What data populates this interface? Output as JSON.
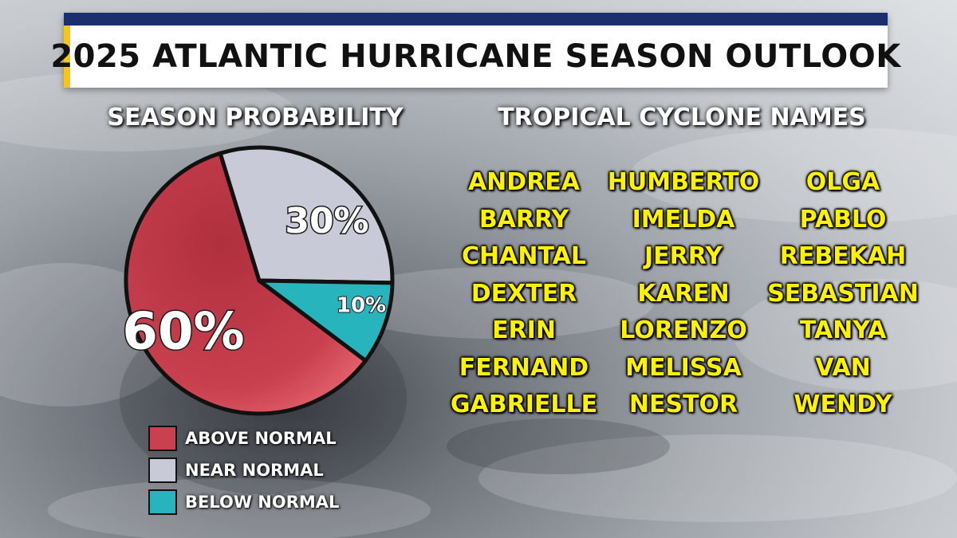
{
  "title": "2025 ATLANTIC HURRICANE SEASON OUTLOOK",
  "headings": {
    "probability": "SEASON PROBABILITY",
    "names": "TROPICAL CYCLONE NAMES"
  },
  "colors": {
    "above_normal": "#c9404f",
    "near_normal": "#c8cad8",
    "below_normal": "#28b4bd",
    "names_text": "#fff200",
    "title_band": "#1b2e6d",
    "title_accent": "#f5c518"
  },
  "chart_data": {
    "type": "pie",
    "title": "SEASON PROBABILITY",
    "slices": [
      {
        "name": "ABOVE NORMAL",
        "value": 60,
        "label": "60%",
        "color": "#c9404f"
      },
      {
        "name": "NEAR NORMAL",
        "value": 30,
        "label": "30%",
        "color": "#c8cad8"
      },
      {
        "name": "BELOW NORMAL",
        "value": 10,
        "label": "10%",
        "color": "#28b4bd"
      }
    ],
    "legend": [
      "ABOVE NORMAL",
      "NEAR NORMAL",
      "BELOW NORMAL"
    ],
    "legend_position": "bottom"
  },
  "names": {
    "columns": [
      [
        "ANDREA",
        "BARRY",
        "CHANTAL",
        "DEXTER",
        "ERIN",
        "FERNAND",
        "GABRIELLE"
      ],
      [
        "HUMBERTO",
        "IMELDA",
        "JERRY",
        "KAREN",
        "LORENZO",
        "MELISSA",
        "NESTOR"
      ],
      [
        "OLGA",
        "PABLO",
        "REBEKAH",
        "SEBASTIAN",
        "TANYA",
        "VAN",
        "WENDY"
      ]
    ]
  }
}
